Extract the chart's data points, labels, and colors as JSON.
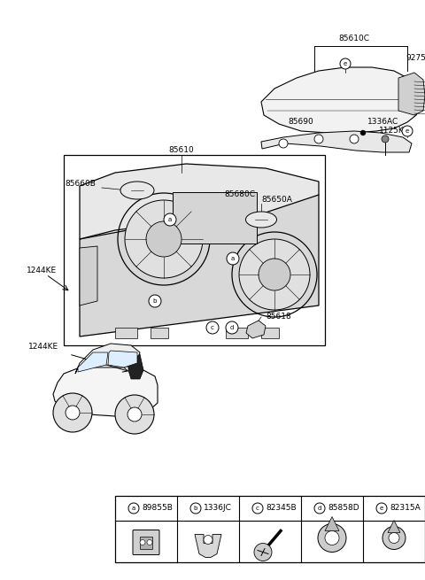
{
  "bg_color": "#ffffff",
  "fig_width": 4.8,
  "fig_height": 6.55,
  "dpi": 100,
  "legend_items": [
    {
      "letter": "a",
      "code": "89855B"
    },
    {
      "letter": "b",
      "code": "1336JC"
    },
    {
      "letter": "c",
      "code": "82345B"
    },
    {
      "letter": "d",
      "code": "85858D"
    },
    {
      "letter": "e",
      "code": "82315A"
    }
  ]
}
